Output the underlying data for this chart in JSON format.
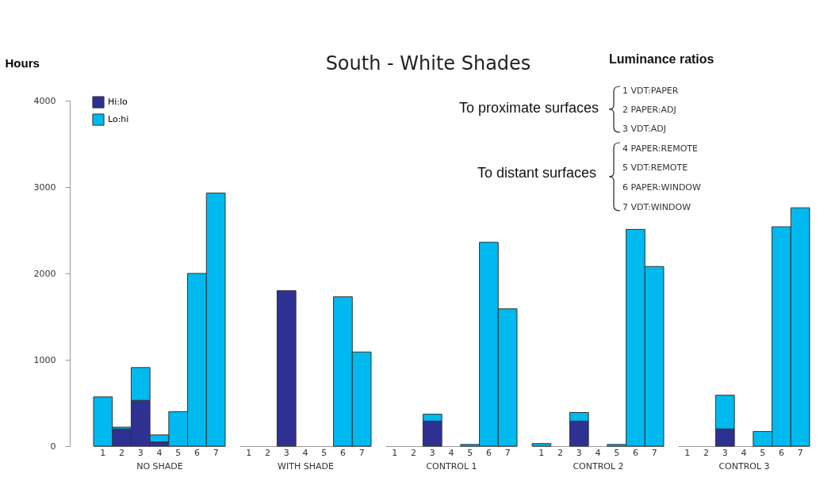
{
  "chart_data": [
    {
      "type": "bar",
      "stacked": true,
      "ylabel": "Hours",
      "xlabel": "NO SHADE",
      "categories": [
        "1",
        "2",
        "3",
        "4",
        "5",
        "6",
        "7"
      ],
      "ylim": [
        0,
        4000
      ],
      "yticks": [
        0,
        1000,
        2000,
        3000,
        4000
      ],
      "legend": "top left",
      "series": [
        {
          "name": "Hi:lo",
          "color": "#2e3192",
          "values": [
            null,
            200,
            530,
            50,
            null,
            null,
            null
          ]
        },
        {
          "name": "Lo:hi",
          "color": "#00b9ef",
          "values": [
            570,
            20,
            380,
            80,
            400,
            2000,
            2930
          ]
        }
      ],
      "annotations": [
        "Luminance ratios",
        "To proximate surfaces",
        "To distant surfaces",
        "1 VDT:PAPER",
        "2 PAPER:ADJ",
        "3 VDT:ADJ",
        "4 PAPER:REMOTE",
        "5 VDT:REMOTE",
        "6 PAPER:WINDOW",
        "7 VDT:WINDOW"
      ]
    },
    {
      "type": "bar",
      "stacked": true,
      "xlabel": "WITH SHADE",
      "categories": [
        "1",
        "2",
        "3",
        "4",
        "5",
        "6",
        "7"
      ],
      "ylim": [
        0,
        4000
      ],
      "tick_labels": "x",
      "series": [
        {
          "color": "#2e3192",
          "values": [
            null,
            null,
            1800,
            null,
            null,
            null,
            null
          ]
        },
        {
          "color": "#00b9ef",
          "values": [
            null,
            null,
            null,
            null,
            null,
            1730,
            1090
          ]
        }
      ]
    },
    {
      "type": "bar",
      "stacked": true,
      "title": "South - White Shades",
      "xlabel": "CONTROL 1",
      "categories": [
        "1",
        "2",
        "3",
        "4",
        "5",
        "6",
        "7"
      ],
      "ylim": [
        0,
        4000
      ],
      "tick_labels": "x",
      "series": [
        {
          "color": "#2e3192",
          "values": [
            null,
            null,
            290,
            null,
            null,
            null,
            null
          ]
        },
        {
          "color": "#00b9ef",
          "values": [
            null,
            null,
            80,
            null,
            20,
            2360,
            1590
          ]
        }
      ]
    },
    {
      "type": "bar",
      "stacked": true,
      "xlabel": "CONTROL 2",
      "categories": [
        "1",
        "2",
        "3",
        "4",
        "5",
        "6",
        "7"
      ],
      "ylim": [
        0,
        4000
      ],
      "tick_labels": "x",
      "series": [
        {
          "color": "#2e3192",
          "values": [
            null,
            null,
            290,
            null,
            null,
            null,
            null
          ]
        },
        {
          "color": "#00b9ef",
          "values": [
            30,
            null,
            100,
            null,
            20,
            2510,
            2080
          ]
        }
      ]
    },
    {
      "type": "bar",
      "stacked": true,
      "xlabel": "CONTROL 3",
      "categories": [
        "1",
        "2",
        "3",
        "4",
        "5",
        "6",
        "7"
      ],
      "ylim": [
        0,
        4000
      ],
      "tick_labels": "x",
      "series": [
        {
          "color": "#2e3192",
          "values": [
            null,
            null,
            200,
            null,
            null,
            null,
            null
          ]
        },
        {
          "color": "#00b9ef",
          "values": [
            null,
            null,
            390,
            null,
            170,
            2540,
            2760
          ]
        }
      ]
    }
  ]
}
